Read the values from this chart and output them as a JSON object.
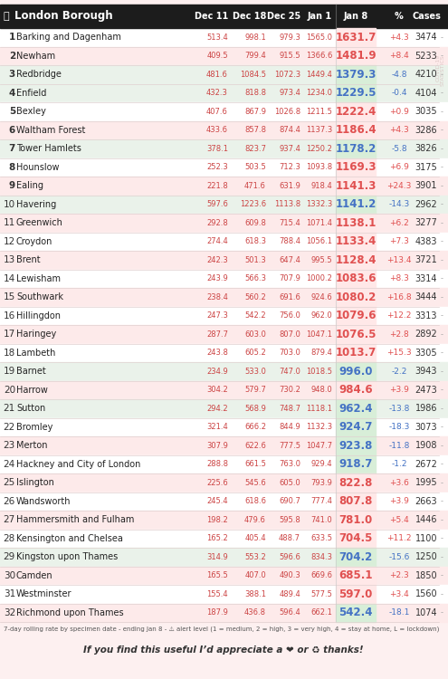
{
  "title": "London Borough",
  "header_bg": "#1c1c1c",
  "columns": [
    "Dec 11",
    "Dec 18",
    "Dec 25",
    "Jan 1",
    "Jan 8",
    "%",
    "Cases"
  ],
  "rows": [
    {
      "rank": 1,
      "borough": "Barking and Dagenham",
      "dec11": "513.4",
      "dec18": "998.1",
      "dec25": "979.3",
      "jan1": "1565.0",
      "jan8": "1631.7",
      "pct": "+4.3",
      "cases": "3474",
      "jan8_color": "#e05050",
      "row_bg": "#ffffff",
      "pct_color": "#e05050",
      "pct_bg": "#ffe8e8"
    },
    {
      "rank": 2,
      "borough": "Newham",
      "dec11": "409.5",
      "dec18": "799.4",
      "dec25": "915.5",
      "jan1": "1366.6",
      "jan8": "1481.9",
      "pct": "+8.4",
      "cases": "5233",
      "jan8_color": "#e05050",
      "row_bg": "#fdeaea",
      "pct_color": "#e05050",
      "pct_bg": "#ffe8e8"
    },
    {
      "rank": 3,
      "borough": "Redbridge",
      "dec11": "481.6",
      "dec18": "1084.5",
      "dec25": "1072.3",
      "jan1": "1449.4",
      "jan8": "1379.3",
      "pct": "-4.8",
      "cases": "4210",
      "jan8_color": "#4472c4",
      "row_bg": "#eaf2ea",
      "pct_color": "#4472c4",
      "pct_bg": "#d8eed8"
    },
    {
      "rank": 4,
      "borough": "Enfield",
      "dec11": "432.3",
      "dec18": "818.8",
      "dec25": "973.4",
      "jan1": "1234.0",
      "jan8": "1229.5",
      "pct": "-0.4",
      "cases": "4104",
      "jan8_color": "#4472c4",
      "row_bg": "#eaf2ea",
      "pct_color": "#4472c4",
      "pct_bg": "#d8eed8"
    },
    {
      "rank": 5,
      "borough": "Bexley",
      "dec11": "407.6",
      "dec18": "867.9",
      "dec25": "1026.8",
      "jan1": "1211.5",
      "jan8": "1222.4",
      "pct": "+0.9",
      "cases": "3035",
      "jan8_color": "#e05050",
      "row_bg": "#ffffff",
      "pct_color": "#e05050",
      "pct_bg": "#ffe8e8"
    },
    {
      "rank": 6,
      "borough": "Waltham Forest",
      "dec11": "433.6",
      "dec18": "857.8",
      "dec25": "874.4",
      "jan1": "1137.3",
      "jan8": "1186.4",
      "pct": "+4.3",
      "cases": "3286",
      "jan8_color": "#e05050",
      "row_bg": "#fdeaea",
      "pct_color": "#e05050",
      "pct_bg": "#ffe8e8"
    },
    {
      "rank": 7,
      "borough": "Tower Hamlets",
      "dec11": "378.1",
      "dec18": "823.7",
      "dec25": "937.4",
      "jan1": "1250.2",
      "jan8": "1178.2",
      "pct": "-5.8",
      "cases": "3826",
      "jan8_color": "#4472c4",
      "row_bg": "#eaf2ea",
      "pct_color": "#4472c4",
      "pct_bg": "#d8eed8"
    },
    {
      "rank": 8,
      "borough": "Hounslow",
      "dec11": "252.3",
      "dec18": "503.5",
      "dec25": "712.3",
      "jan1": "1093.8",
      "jan8": "1169.3",
      "pct": "+6.9",
      "cases": "3175",
      "jan8_color": "#e05050",
      "row_bg": "#ffffff",
      "pct_color": "#e05050",
      "pct_bg": "#ffe8e8"
    },
    {
      "rank": 9,
      "borough": "Ealing",
      "dec11": "221.8",
      "dec18": "471.6",
      "dec25": "631.9",
      "jan1": "918.4",
      "jan8": "1141.3",
      "pct": "+24.3",
      "cases": "3901",
      "jan8_color": "#e05050",
      "row_bg": "#fdeaea",
      "pct_color": "#e05050",
      "pct_bg": "#ffe8e8"
    },
    {
      "rank": 10,
      "borough": "Havering",
      "dec11": "597.6",
      "dec18": "1223.6",
      "dec25": "1113.8",
      "jan1": "1332.3",
      "jan8": "1141.2",
      "pct": "-14.3",
      "cases": "2962",
      "jan8_color": "#4472c4",
      "row_bg": "#eaf2ea",
      "pct_color": "#4472c4",
      "pct_bg": "#d8eed8"
    },
    {
      "rank": 11,
      "borough": "Greenwich",
      "dec11": "292.8",
      "dec18": "609.8",
      "dec25": "715.4",
      "jan1": "1071.4",
      "jan8": "1138.1",
      "pct": "+6.2",
      "cases": "3277",
      "jan8_color": "#e05050",
      "row_bg": "#fdeaea",
      "pct_color": "#e05050",
      "pct_bg": "#ffe8e8"
    },
    {
      "rank": 12,
      "borough": "Croydon",
      "dec11": "274.4",
      "dec18": "618.3",
      "dec25": "788.4",
      "jan1": "1056.1",
      "jan8": "1133.4",
      "pct": "+7.3",
      "cases": "4383",
      "jan8_color": "#e05050",
      "row_bg": "#ffffff",
      "pct_color": "#e05050",
      "pct_bg": "#ffe8e8"
    },
    {
      "rank": 13,
      "borough": "Brent",
      "dec11": "242.3",
      "dec18": "501.3",
      "dec25": "647.4",
      "jan1": "995.5",
      "jan8": "1128.4",
      "pct": "+13.4",
      "cases": "3721",
      "jan8_color": "#e05050",
      "row_bg": "#fdeaea",
      "pct_color": "#e05050",
      "pct_bg": "#ffe8e8"
    },
    {
      "rank": 14,
      "borough": "Lewisham",
      "dec11": "243.9",
      "dec18": "566.3",
      "dec25": "707.9",
      "jan1": "1000.2",
      "jan8": "1083.6",
      "pct": "+8.3",
      "cases": "3314",
      "jan8_color": "#e05050",
      "row_bg": "#ffffff",
      "pct_color": "#e05050",
      "pct_bg": "#ffe8e8"
    },
    {
      "rank": 15,
      "borough": "Southwark",
      "dec11": "238.4",
      "dec18": "560.2",
      "dec25": "691.6",
      "jan1": "924.6",
      "jan8": "1080.2",
      "pct": "+16.8",
      "cases": "3444",
      "jan8_color": "#e05050",
      "row_bg": "#fdeaea",
      "pct_color": "#e05050",
      "pct_bg": "#ffe8e8"
    },
    {
      "rank": 16,
      "borough": "Hillingdon",
      "dec11": "247.3",
      "dec18": "542.2",
      "dec25": "756.0",
      "jan1": "962.0",
      "jan8": "1079.6",
      "pct": "+12.2",
      "cases": "3313",
      "jan8_color": "#e05050",
      "row_bg": "#ffffff",
      "pct_color": "#e05050",
      "pct_bg": "#ffe8e8"
    },
    {
      "rank": 17,
      "borough": "Haringey",
      "dec11": "287.7",
      "dec18": "603.0",
      "dec25": "807.0",
      "jan1": "1047.1",
      "jan8": "1076.5",
      "pct": "+2.8",
      "cases": "2892",
      "jan8_color": "#e05050",
      "row_bg": "#fdeaea",
      "pct_color": "#e05050",
      "pct_bg": "#ffe8e8"
    },
    {
      "rank": 18,
      "borough": "Lambeth",
      "dec11": "243.8",
      "dec18": "605.2",
      "dec25": "703.0",
      "jan1": "879.4",
      "jan8": "1013.7",
      "pct": "+15.3",
      "cases": "3305",
      "jan8_color": "#e05050",
      "row_bg": "#ffffff",
      "pct_color": "#e05050",
      "pct_bg": "#ffe8e8"
    },
    {
      "rank": 19,
      "borough": "Barnet",
      "dec11": "234.9",
      "dec18": "533.0",
      "dec25": "747.0",
      "jan1": "1018.5",
      "jan8": "996.0",
      "pct": "-2.2",
      "cases": "3943",
      "jan8_color": "#4472c4",
      "row_bg": "#eaf2ea",
      "pct_color": "#4472c4",
      "pct_bg": "#d8eed8"
    },
    {
      "rank": 20,
      "borough": "Harrow",
      "dec11": "304.2",
      "dec18": "579.7",
      "dec25": "730.2",
      "jan1": "948.0",
      "jan8": "984.6",
      "pct": "+3.9",
      "cases": "2473",
      "jan8_color": "#e05050",
      "row_bg": "#fdeaea",
      "pct_color": "#e05050",
      "pct_bg": "#ffe8e8"
    },
    {
      "rank": 21,
      "borough": "Sutton",
      "dec11": "294.2",
      "dec18": "568.9",
      "dec25": "748.7",
      "jan1": "1118.1",
      "jan8": "962.4",
      "pct": "-13.8",
      "cases": "1986",
      "jan8_color": "#4472c4",
      "row_bg": "#eaf2ea",
      "pct_color": "#4472c4",
      "pct_bg": "#d8eed8"
    },
    {
      "rank": 22,
      "borough": "Bromley",
      "dec11": "321.4",
      "dec18": "666.2",
      "dec25": "844.9",
      "jan1": "1132.3",
      "jan8": "924.7",
      "pct": "-18.3",
      "cases": "3073",
      "jan8_color": "#4472c4",
      "row_bg": "#ffffff",
      "pct_color": "#4472c4",
      "pct_bg": "#d8eed8"
    },
    {
      "rank": 23,
      "borough": "Merton",
      "dec11": "307.9",
      "dec18": "622.6",
      "dec25": "777.5",
      "jan1": "1047.7",
      "jan8": "923.8",
      "pct": "-11.8",
      "cases": "1908",
      "jan8_color": "#4472c4",
      "row_bg": "#fdeaea",
      "pct_color": "#4472c4",
      "pct_bg": "#d8eed8"
    },
    {
      "rank": 24,
      "borough": "Hackney and City of London",
      "dec11": "288.8",
      "dec18": "661.5",
      "dec25": "763.0",
      "jan1": "929.4",
      "jan8": "918.7",
      "pct": "-1.2",
      "cases": "2672",
      "jan8_color": "#4472c4",
      "row_bg": "#ffffff",
      "pct_color": "#4472c4",
      "pct_bg": "#d8eed8"
    },
    {
      "rank": 25,
      "borough": "Islington",
      "dec11": "225.6",
      "dec18": "545.6",
      "dec25": "605.0",
      "jan1": "793.9",
      "jan8": "822.8",
      "pct": "+3.6",
      "cases": "1995",
      "jan8_color": "#e05050",
      "row_bg": "#fdeaea",
      "pct_color": "#e05050",
      "pct_bg": "#ffe8e8"
    },
    {
      "rank": 26,
      "borough": "Wandsworth",
      "dec11": "245.4",
      "dec18": "618.6",
      "dec25": "690.7",
      "jan1": "777.4",
      "jan8": "807.8",
      "pct": "+3.9",
      "cases": "2663",
      "jan8_color": "#e05050",
      "row_bg": "#ffffff",
      "pct_color": "#e05050",
      "pct_bg": "#ffe8e8"
    },
    {
      "rank": 27,
      "borough": "Hammersmith and Fulham",
      "dec11": "198.2",
      "dec18": "479.6",
      "dec25": "595.8",
      "jan1": "741.0",
      "jan8": "781.0",
      "pct": "+5.4",
      "cases": "1446",
      "jan8_color": "#e05050",
      "row_bg": "#fdeaea",
      "pct_color": "#e05050",
      "pct_bg": "#ffe8e8"
    },
    {
      "rank": 28,
      "borough": "Kensington and Chelsea",
      "dec11": "165.2",
      "dec18": "405.4",
      "dec25": "488.7",
      "jan1": "633.5",
      "jan8": "704.5",
      "pct": "+11.2",
      "cases": "1100",
      "jan8_color": "#e05050",
      "row_bg": "#ffffff",
      "pct_color": "#e05050",
      "pct_bg": "#ffe8e8"
    },
    {
      "rank": 29,
      "borough": "Kingston upon Thames",
      "dec11": "314.9",
      "dec18": "553.2",
      "dec25": "596.6",
      "jan1": "834.3",
      "jan8": "704.2",
      "pct": "-15.6",
      "cases": "1250",
      "jan8_color": "#4472c4",
      "row_bg": "#eaf2ea",
      "pct_color": "#4472c4",
      "pct_bg": "#d8eed8"
    },
    {
      "rank": 30,
      "borough": "Camden",
      "dec11": "165.5",
      "dec18": "407.0",
      "dec25": "490.3",
      "jan1": "669.6",
      "jan8": "685.1",
      "pct": "+2.3",
      "cases": "1850",
      "jan8_color": "#e05050",
      "row_bg": "#fdeaea",
      "pct_color": "#e05050",
      "pct_bg": "#ffe8e8"
    },
    {
      "rank": 31,
      "borough": "Westminster",
      "dec11": "155.4",
      "dec18": "388.1",
      "dec25": "489.4",
      "jan1": "577.5",
      "jan8": "597.0",
      "pct": "+3.4",
      "cases": "1560",
      "jan8_color": "#e05050",
      "row_bg": "#ffffff",
      "pct_color": "#e05050",
      "pct_bg": "#ffe8e8"
    },
    {
      "rank": 32,
      "borough": "Richmond upon Thames",
      "dec11": "187.9",
      "dec18": "436.8",
      "dec25": "596.4",
      "jan1": "662.1",
      "jan8": "542.4",
      "pct": "-18.1",
      "cases": "1074",
      "jan8_color": "#4472c4",
      "row_bg": "#fdeaea",
      "pct_color": "#4472c4",
      "pct_bg": "#d8eed8"
    }
  ],
  "footer_note": "7-day rolling rate by specimen date - ending Jan 8 - ⚠ alert level (1 = medium, 2 = high, 3 = very high, 4 = stay at home, L = lockdown)",
  "footer_cta": "If you find this useful I’d appreciate a   or   thanks!",
  "bg_color": "#fdf0f0",
  "fig_width": 4.95,
  "fig_height": 7.5
}
